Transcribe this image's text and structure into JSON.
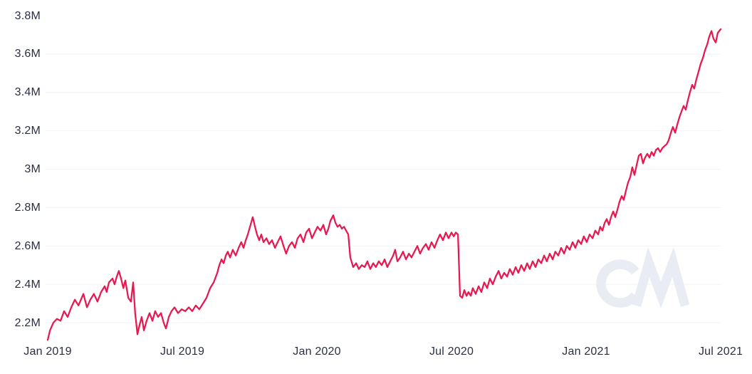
{
  "chart_data": {
    "type": "line",
    "watermark": "CM",
    "line_color": "#E9174F",
    "axis_text_color": "#2B2F44",
    "gridline_color": "#F1F2F5",
    "watermark_color": "#EAECF4",
    "background_color": "#FFFFFF",
    "legend": "none",
    "grid": "horizontal-only",
    "x_axis": {
      "tick_labels": [
        "Jan 2019",
        "Jul 2019",
        "Jan 2020",
        "Jul 2020",
        "Jan 2021",
        "Jul 2021"
      ],
      "tick_months": [
        0,
        6,
        12,
        18,
        24,
        30
      ]
    },
    "y_axis": {
      "tick_labels": [
        "3.8M",
        "3.6M",
        "3.4M",
        "3.2M",
        "3M",
        "2.8M",
        "2.6M",
        "2.4M",
        "2.2M"
      ],
      "tick_values": [
        3.8,
        3.6,
        3.4,
        3.2,
        3.0,
        2.8,
        2.6,
        2.4,
        2.2
      ],
      "gridline_values": [
        3.6,
        3.4,
        3.2,
        3.0,
        2.8,
        2.6,
        2.4,
        2.2
      ],
      "unit_millions": true
    },
    "ylim": [
      2.1,
      3.8
    ],
    "x_unit": "months since Jan 2019",
    "points": [
      [
        0.0,
        2.11
      ],
      [
        0.1,
        2.16
      ],
      [
        0.25,
        2.2
      ],
      [
        0.41,
        2.22
      ],
      [
        0.57,
        2.21
      ],
      [
        0.73,
        2.26
      ],
      [
        0.89,
        2.23
      ],
      [
        1.05,
        2.28
      ],
      [
        1.21,
        2.32
      ],
      [
        1.37,
        2.29
      ],
      [
        1.59,
        2.35
      ],
      [
        1.75,
        2.28
      ],
      [
        1.9,
        2.32
      ],
      [
        2.06,
        2.35
      ],
      [
        2.22,
        2.31
      ],
      [
        2.38,
        2.36
      ],
      [
        2.54,
        2.39
      ],
      [
        2.63,
        2.36
      ],
      [
        2.73,
        2.41
      ],
      [
        2.89,
        2.43
      ],
      [
        2.98,
        2.4
      ],
      [
        3.08,
        2.44
      ],
      [
        3.17,
        2.47
      ],
      [
        3.27,
        2.43
      ],
      [
        3.37,
        2.38
      ],
      [
        3.46,
        2.42
      ],
      [
        3.59,
        2.33
      ],
      [
        3.71,
        2.31
      ],
      [
        3.81,
        2.41
      ],
      [
        3.9,
        2.25
      ],
      [
        4.0,
        2.14
      ],
      [
        4.1,
        2.19
      ],
      [
        4.19,
        2.23
      ],
      [
        4.29,
        2.16
      ],
      [
        4.41,
        2.21
      ],
      [
        4.54,
        2.25
      ],
      [
        4.67,
        2.21
      ],
      [
        4.79,
        2.26
      ],
      [
        4.92,
        2.23
      ],
      [
        5.05,
        2.25
      ],
      [
        5.17,
        2.2
      ],
      [
        5.27,
        2.17
      ],
      [
        5.4,
        2.23
      ],
      [
        5.52,
        2.26
      ],
      [
        5.65,
        2.28
      ],
      [
        5.81,
        2.25
      ],
      [
        5.97,
        2.27
      ],
      [
        6.13,
        2.26
      ],
      [
        6.29,
        2.28
      ],
      [
        6.44,
        2.26
      ],
      [
        6.6,
        2.29
      ],
      [
        6.76,
        2.27
      ],
      [
        6.92,
        2.3
      ],
      [
        7.08,
        2.33
      ],
      [
        7.24,
        2.38
      ],
      [
        7.4,
        2.41
      ],
      [
        7.56,
        2.46
      ],
      [
        7.65,
        2.5
      ],
      [
        7.75,
        2.53
      ],
      [
        7.84,
        2.51
      ],
      [
        7.94,
        2.55
      ],
      [
        8.03,
        2.57
      ],
      [
        8.13,
        2.54
      ],
      [
        8.25,
        2.58
      ],
      [
        8.38,
        2.55
      ],
      [
        8.51,
        2.59
      ],
      [
        8.63,
        2.62
      ],
      [
        8.73,
        2.59
      ],
      [
        8.83,
        2.63
      ],
      [
        8.92,
        2.66
      ],
      [
        9.02,
        2.7
      ],
      [
        9.14,
        2.75
      ],
      [
        9.24,
        2.7
      ],
      [
        9.33,
        2.66
      ],
      [
        9.43,
        2.63
      ],
      [
        9.52,
        2.66
      ],
      [
        9.62,
        2.62
      ],
      [
        9.75,
        2.64
      ],
      [
        9.87,
        2.61
      ],
      [
        10.0,
        2.63
      ],
      [
        10.13,
        2.59
      ],
      [
        10.25,
        2.62
      ],
      [
        10.38,
        2.65
      ],
      [
        10.51,
        2.6
      ],
      [
        10.63,
        2.56
      ],
      [
        10.76,
        2.6
      ],
      [
        10.89,
        2.62
      ],
      [
        11.02,
        2.59
      ],
      [
        11.14,
        2.64
      ],
      [
        11.27,
        2.66
      ],
      [
        11.4,
        2.62
      ],
      [
        11.52,
        2.67
      ],
      [
        11.65,
        2.69
      ],
      [
        11.78,
        2.64
      ],
      [
        11.9,
        2.67
      ],
      [
        12.03,
        2.7
      ],
      [
        12.16,
        2.68
      ],
      [
        12.29,
        2.71
      ],
      [
        12.41,
        2.66
      ],
      [
        12.51,
        2.69
      ],
      [
        12.6,
        2.73
      ],
      [
        12.73,
        2.76
      ],
      [
        12.83,
        2.72
      ],
      [
        12.92,
        2.7
      ],
      [
        13.02,
        2.71
      ],
      [
        13.11,
        2.69
      ],
      [
        13.21,
        2.7
      ],
      [
        13.3,
        2.68
      ],
      [
        13.4,
        2.66
      ],
      [
        13.49,
        2.54
      ],
      [
        13.62,
        2.49
      ],
      [
        13.75,
        2.51
      ],
      [
        13.87,
        2.48
      ],
      [
        14.0,
        2.5
      ],
      [
        14.13,
        2.49
      ],
      [
        14.25,
        2.52
      ],
      [
        14.38,
        2.48
      ],
      [
        14.51,
        2.51
      ],
      [
        14.63,
        2.49
      ],
      [
        14.76,
        2.52
      ],
      [
        14.89,
        2.5
      ],
      [
        15.02,
        2.53
      ],
      [
        15.14,
        2.49
      ],
      [
        15.27,
        2.52
      ],
      [
        15.4,
        2.55
      ],
      [
        15.49,
        2.58
      ],
      [
        15.59,
        2.52
      ],
      [
        15.71,
        2.54
      ],
      [
        15.84,
        2.57
      ],
      [
        15.97,
        2.53
      ],
      [
        16.1,
        2.56
      ],
      [
        16.22,
        2.54
      ],
      [
        16.35,
        2.57
      ],
      [
        16.48,
        2.6
      ],
      [
        16.6,
        2.56
      ],
      [
        16.73,
        2.59
      ],
      [
        16.86,
        2.61
      ],
      [
        16.98,
        2.58
      ],
      [
        17.11,
        2.62
      ],
      [
        17.24,
        2.59
      ],
      [
        17.37,
        2.63
      ],
      [
        17.49,
        2.66
      ],
      [
        17.62,
        2.63
      ],
      [
        17.75,
        2.67
      ],
      [
        17.87,
        2.64
      ],
      [
        18.0,
        2.67
      ],
      [
        18.1,
        2.65
      ],
      [
        18.19,
        2.67
      ],
      [
        18.29,
        2.66
      ],
      [
        18.38,
        2.34
      ],
      [
        18.48,
        2.33
      ],
      [
        18.57,
        2.37
      ],
      [
        18.67,
        2.34
      ],
      [
        18.76,
        2.36
      ],
      [
        18.86,
        2.34
      ],
      [
        18.95,
        2.38
      ],
      [
        19.08,
        2.35
      ],
      [
        19.21,
        2.39
      ],
      [
        19.33,
        2.36
      ],
      [
        19.46,
        2.41
      ],
      [
        19.59,
        2.38
      ],
      [
        19.71,
        2.43
      ],
      [
        19.84,
        2.4
      ],
      [
        19.97,
        2.44
      ],
      [
        20.1,
        2.47
      ],
      [
        20.22,
        2.43
      ],
      [
        20.35,
        2.46
      ],
      [
        20.48,
        2.44
      ],
      [
        20.6,
        2.48
      ],
      [
        20.73,
        2.45
      ],
      [
        20.86,
        2.49
      ],
      [
        20.98,
        2.46
      ],
      [
        21.11,
        2.5
      ],
      [
        21.24,
        2.47
      ],
      [
        21.37,
        2.51
      ],
      [
        21.49,
        2.48
      ],
      [
        21.62,
        2.52
      ],
      [
        21.75,
        2.49
      ],
      [
        21.87,
        2.53
      ],
      [
        22.0,
        2.51
      ],
      [
        22.13,
        2.55
      ],
      [
        22.25,
        2.52
      ],
      [
        22.38,
        2.56
      ],
      [
        22.51,
        2.53
      ],
      [
        22.63,
        2.57
      ],
      [
        22.76,
        2.55
      ],
      [
        22.89,
        2.59
      ],
      [
        23.02,
        2.56
      ],
      [
        23.14,
        2.6
      ],
      [
        23.27,
        2.58
      ],
      [
        23.4,
        2.62
      ],
      [
        23.52,
        2.59
      ],
      [
        23.65,
        2.63
      ],
      [
        23.78,
        2.61
      ],
      [
        23.9,
        2.65
      ],
      [
        24.03,
        2.62
      ],
      [
        24.16,
        2.66
      ],
      [
        24.29,
        2.64
      ],
      [
        24.41,
        2.68
      ],
      [
        24.54,
        2.66
      ],
      [
        24.63,
        2.7
      ],
      [
        24.73,
        2.68
      ],
      [
        24.83,
        2.72
      ],
      [
        24.92,
        2.74
      ],
      [
        25.02,
        2.71
      ],
      [
        25.11,
        2.75
      ],
      [
        25.21,
        2.78
      ],
      [
        25.3,
        2.75
      ],
      [
        25.4,
        2.79
      ],
      [
        25.49,
        2.83
      ],
      [
        25.59,
        2.86
      ],
      [
        25.68,
        2.84
      ],
      [
        25.78,
        2.89
      ],
      [
        25.87,
        2.93
      ],
      [
        25.97,
        2.96
      ],
      [
        26.06,
        3.01
      ],
      [
        26.16,
        2.97
      ],
      [
        26.25,
        3.02
      ],
      [
        26.35,
        3.07
      ],
      [
        26.44,
        3.08
      ],
      [
        26.54,
        3.03
      ],
      [
        26.63,
        3.06
      ],
      [
        26.73,
        3.08
      ],
      [
        26.83,
        3.06
      ],
      [
        26.92,
        3.09
      ],
      [
        27.02,
        3.07
      ],
      [
        27.11,
        3.1
      ],
      [
        27.21,
        3.11
      ],
      [
        27.3,
        3.09
      ],
      [
        27.4,
        3.11
      ],
      [
        27.49,
        3.12
      ],
      [
        27.59,
        3.13
      ],
      [
        27.68,
        3.15
      ],
      [
        27.78,
        3.19
      ],
      [
        27.87,
        3.22
      ],
      [
        27.97,
        3.19
      ],
      [
        28.06,
        3.23
      ],
      [
        28.16,
        3.27
      ],
      [
        28.25,
        3.3
      ],
      [
        28.35,
        3.33
      ],
      [
        28.44,
        3.31
      ],
      [
        28.54,
        3.36
      ],
      [
        28.63,
        3.4
      ],
      [
        28.73,
        3.44
      ],
      [
        28.82,
        3.42
      ],
      [
        28.92,
        3.47
      ],
      [
        29.02,
        3.51
      ],
      [
        29.11,
        3.55
      ],
      [
        29.21,
        3.58
      ],
      [
        29.3,
        3.62
      ],
      [
        29.4,
        3.65
      ],
      [
        29.49,
        3.69
      ],
      [
        29.59,
        3.72
      ],
      [
        29.68,
        3.68
      ],
      [
        29.78,
        3.66
      ],
      [
        29.87,
        3.71
      ],
      [
        30.0,
        3.73
      ]
    ]
  }
}
